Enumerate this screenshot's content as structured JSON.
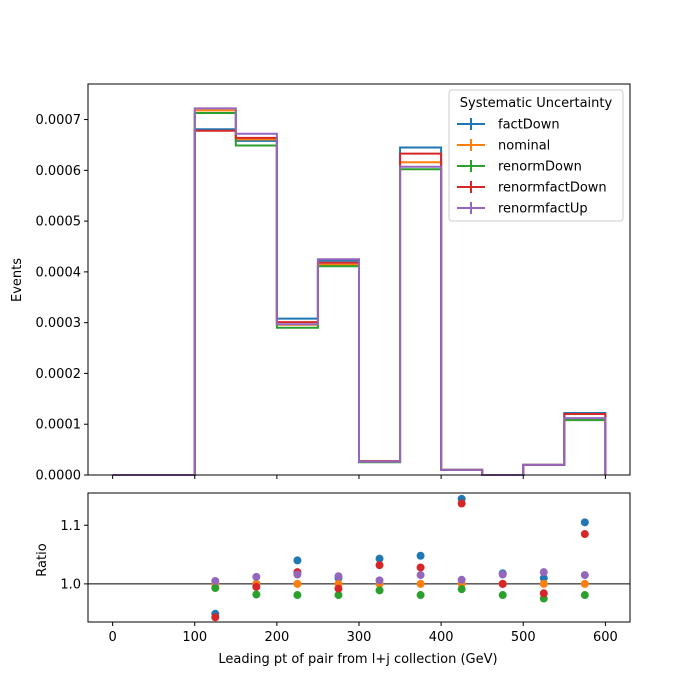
{
  "chart_data": [
    {
      "type": "step",
      "legend_title": "Systematic Uncertainty",
      "legend_location": "upper right",
      "ylabel": "Events",
      "xlim": [
        -30,
        630
      ],
      "ylim": [
        0,
        0.00077
      ],
      "y_ticks": [
        0,
        0.0001,
        0.0002,
        0.0003,
        0.0004,
        0.0005,
        0.0006,
        0.0007
      ],
      "y_tick_labels": [
        "0.0000",
        "0.0001",
        "0.0002",
        "0.0003",
        "0.0004",
        "0.0005",
        "0.0006",
        "0.0007"
      ],
      "bin_edges": [
        0,
        50,
        100,
        150,
        200,
        250,
        300,
        350,
        400,
        450,
        500,
        550,
        600
      ],
      "series": [
        {
          "name": "factDown",
          "color": "#1f77b4",
          "values": [
            0,
            0,
            0.000681,
            0.000658,
            0.000308,
            0.000422,
            2.7e-05,
            0.000645,
            1e-05,
            0.0,
            2e-05,
            0.000122
          ]
        },
        {
          "name": "nominal",
          "color": "#ff7f0e",
          "values": [
            0,
            0,
            0.000718,
            0.000661,
            0.000296,
            0.000414,
            2.6e-05,
            0.000616,
            1e-05,
            0.0,
            2e-05,
            0.00011
          ]
        },
        {
          "name": "renormDown",
          "color": "#2ca02c",
          "values": [
            0,
            0,
            0.000713,
            0.000649,
            0.00029,
            0.000411,
            2.5e-05,
            0.000602,
            1e-05,
            0.0,
            2e-05,
            0.000108
          ]
        },
        {
          "name": "renormfactDown",
          "color": "#d62728",
          "values": [
            0,
            0,
            0.000678,
            0.000664,
            0.000301,
            0.000418,
            2.7e-05,
            0.000633,
            1e-05,
            0.0,
            2e-05,
            0.00012
          ]
        },
        {
          "name": "renormfactUp",
          "color": "#9467bd",
          "values": [
            0,
            0,
            0.000722,
            0.000672,
            0.000297,
            0.000425,
            2.6e-05,
            0.000607,
            1e-05,
            0.0,
            2e-05,
            0.000112
          ]
        }
      ]
    },
    {
      "type": "scatter",
      "xlabel": "Leading pt of pair from l+j collection (GeV)",
      "ylabel": "Ratio",
      "xlim": [
        -30,
        630
      ],
      "ylim": [
        0.935,
        1.155
      ],
      "x_ticks": [
        0,
        100,
        200,
        300,
        400,
        500,
        600
      ],
      "x_tick_labels": [
        "0",
        "100",
        "200",
        "300",
        "400",
        "500",
        "600"
      ],
      "y_ticks": [
        1.0,
        1.1
      ],
      "y_tick_labels": [
        "1.0",
        "1.1"
      ],
      "reference_line": 1.0,
      "x": [
        125,
        175,
        225,
        275,
        325,
        375,
        425,
        475,
        525,
        575
      ],
      "series": [
        {
          "name": "factDown",
          "color": "#1f77b4",
          "values": [
            0.949,
            1.0,
            1.04,
            1.01,
            1.043,
            1.048,
            1.145,
            1.018,
            1.01,
            1.105
          ]
        },
        {
          "name": "nominal",
          "color": "#ff7f0e",
          "values": [
            1.0,
            1.0,
            1.0,
            1.0,
            1.0,
            1.0,
            1.0,
            1.0,
            1.0,
            1.0
          ]
        },
        {
          "name": "renormDown",
          "color": "#2ca02c",
          "values": [
            0.993,
            0.982,
            0.981,
            0.981,
            0.989,
            0.981,
            0.991,
            0.981,
            0.975,
            0.981
          ]
        },
        {
          "name": "renormfactDown",
          "color": "#d62728",
          "values": [
            0.943,
            0.995,
            1.02,
            0.992,
            1.032,
            1.028,
            1.137,
            1.0,
            0.984,
            1.085
          ]
        },
        {
          "name": "renormfactUp",
          "color": "#9467bd",
          "values": [
            1.005,
            1.012,
            1.016,
            1.013,
            1.006,
            1.015,
            1.007,
            1.016,
            1.02,
            1.015
          ]
        }
      ]
    }
  ]
}
